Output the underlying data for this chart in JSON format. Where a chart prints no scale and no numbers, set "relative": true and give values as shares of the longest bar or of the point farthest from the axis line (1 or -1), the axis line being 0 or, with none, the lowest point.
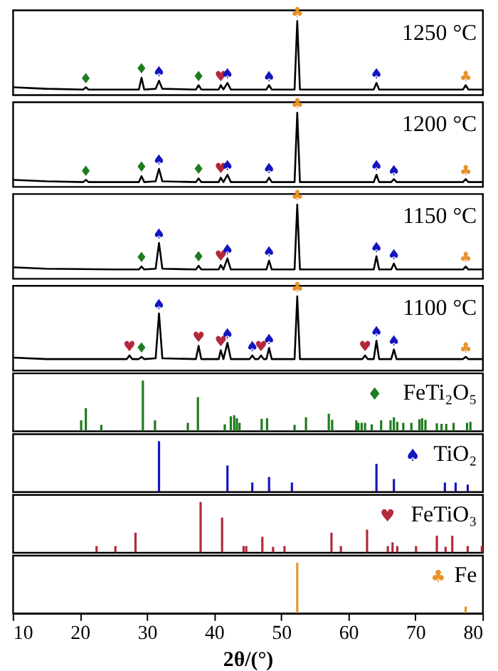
{
  "chart_data": [
    {
      "type": "line",
      "relative": true,
      "xlim": [
        10,
        80
      ],
      "tick_labels": false,
      "x": [
        10,
        15,
        20.5,
        20.9,
        21.3,
        28.8,
        29.2,
        29.6,
        31.3,
        31.8,
        32.3,
        37.3,
        37.7,
        38.1,
        40.7,
        41.0,
        41.4,
        42.0,
        42.5,
        47.8,
        48.2,
        48.6,
        52.0,
        52.4,
        52.8,
        63.8,
        64.2,
        64.6,
        77.1,
        77.5,
        77.9,
        80
      ],
      "series": [
        {
          "color": "#000000",
          "values": [
            0.1,
            0.08,
            0.07,
            0.1,
            0.07,
            0.07,
            0.23,
            0.07,
            0.08,
            0.19,
            0.08,
            0.07,
            0.13,
            0.07,
            0.07,
            0.13,
            0.07,
            0.16,
            0.07,
            0.07,
            0.13,
            0.07,
            0.07,
            1,
            0.07,
            0.07,
            0.16,
            0.07,
            0.07,
            0.13,
            0.07,
            0.07
          ]
        }
      ],
      "annotations": [
        "1250 °C",
        {
          "text": "♦",
          "x": 20.9,
          "y": 0.1
        },
        {
          "text": "♦",
          "x": 29.2,
          "y": 0.23
        },
        {
          "text": "♠",
          "x": 31.8,
          "y": 0.19
        },
        {
          "text": "♦",
          "x": 37.7,
          "y": 0.13
        },
        {
          "text": "♥",
          "x": 41.0,
          "y": 0.13
        },
        {
          "text": "♠",
          "x": 42.0,
          "y": 0.16
        },
        {
          "text": "♠",
          "x": 48.2,
          "y": 0.13
        },
        {
          "text": "♣",
          "x": 52.4,
          "y": 1
        },
        {
          "text": "♠",
          "x": 64.2,
          "y": 0.16
        },
        {
          "text": "♣",
          "x": 77.5,
          "y": 0.13
        }
      ]
    },
    {
      "type": "line",
      "relative": true,
      "xlim": [
        10,
        80
      ],
      "tick_labels": false,
      "x": [
        10,
        15,
        20.5,
        20.9,
        21.3,
        28.8,
        29.2,
        29.6,
        31.3,
        31.8,
        32.3,
        37.3,
        37.7,
        38.1,
        40.7,
        41.0,
        41.4,
        42.0,
        42.5,
        47.8,
        48.2,
        48.6,
        52.0,
        52.4,
        52.8,
        63.8,
        64.2,
        64.6,
        66.4,
        66.8,
        67.2,
        77.1,
        77.5,
        77.9,
        80
      ],
      "series": [
        {
          "color": "#000000",
          "values": [
            0.09,
            0.07,
            0.06,
            0.09,
            0.06,
            0.06,
            0.14,
            0.06,
            0.07,
            0.24,
            0.07,
            0.06,
            0.11,
            0.06,
            0.06,
            0.12,
            0.06,
            0.16,
            0.06,
            0.06,
            0.12,
            0.06,
            0.06,
            1,
            0.06,
            0.06,
            0.16,
            0.06,
            0.06,
            0.1,
            0.06,
            0.06,
            0.1,
            0.06,
            0.06
          ]
        }
      ],
      "annotations": [
        "1200 °C",
        {
          "text": "♦",
          "x": 20.9,
          "y": 0.09
        },
        {
          "text": "♦",
          "x": 29.2,
          "y": 0.14
        },
        {
          "text": "♠",
          "x": 31.8,
          "y": 0.24
        },
        {
          "text": "♦",
          "x": 37.7,
          "y": 0.11
        },
        {
          "text": "♥",
          "x": 41.0,
          "y": 0.12
        },
        {
          "text": "♠",
          "x": 42.0,
          "y": 0.16
        },
        {
          "text": "♠",
          "x": 48.2,
          "y": 0.12
        },
        {
          "text": "♣",
          "x": 52.4,
          "y": 1
        },
        {
          "text": "♠",
          "x": 64.2,
          "y": 0.16
        },
        {
          "text": "♠",
          "x": 66.8,
          "y": 0.1
        },
        {
          "text": "♣",
          "x": 77.5,
          "y": 0.1
        }
      ]
    },
    {
      "type": "line",
      "relative": true,
      "xlim": [
        10,
        80
      ],
      "tick_labels": false,
      "x": [
        10,
        15,
        25,
        28.8,
        29.2,
        29.6,
        31.3,
        31.8,
        32.3,
        37.3,
        37.7,
        38.1,
        40.7,
        41.0,
        41.4,
        42.0,
        42.5,
        47.8,
        48.2,
        48.6,
        52.0,
        52.4,
        52.8,
        63.8,
        64.2,
        64.6,
        66.4,
        66.8,
        67.2,
        77.1,
        77.5,
        77.9,
        80
      ],
      "series": [
        {
          "color": "#000000",
          "values": [
            0.15,
            0.13,
            0.12,
            0.12,
            0.16,
            0.12,
            0.13,
            0.48,
            0.13,
            0.12,
            0.17,
            0.12,
            0.12,
            0.18,
            0.12,
            0.27,
            0.12,
            0.12,
            0.24,
            0.12,
            0.12,
            1,
            0.12,
            0.12,
            0.3,
            0.12,
            0.12,
            0.2,
            0.12,
            0.12,
            0.16,
            0.12,
            0.12
          ]
        }
      ],
      "annotations": [
        "1150 °C",
        {
          "text": "♦",
          "x": 29.2,
          "y": 0.16
        },
        {
          "text": "♠",
          "x": 31.8,
          "y": 0.48
        },
        {
          "text": "♦",
          "x": 37.7,
          "y": 0.17
        },
        {
          "text": "♥",
          "x": 41.0,
          "y": 0.18
        },
        {
          "text": "♠",
          "x": 42.0,
          "y": 0.27
        },
        {
          "text": "♠",
          "x": 48.2,
          "y": 0.24
        },
        {
          "text": "♣",
          "x": 52.4,
          "y": 1
        },
        {
          "text": "♠",
          "x": 64.2,
          "y": 0.3
        },
        {
          "text": "♠",
          "x": 66.8,
          "y": 0.2
        },
        {
          "text": "♣",
          "x": 77.5,
          "y": 0.16
        }
      ]
    },
    {
      "type": "line",
      "relative": true,
      "xlim": [
        10,
        80
      ],
      "tick_labels": false,
      "x": [
        10,
        15,
        25,
        27.0,
        27.4,
        27.8,
        28.8,
        29.2,
        29.6,
        31.3,
        31.8,
        32.3,
        37.3,
        37.7,
        38.1,
        40.7,
        41.0,
        41.4,
        42.0,
        42.5,
        45.3,
        45.7,
        46.1,
        46.6,
        47.0,
        47.4,
        47.8,
        48.2,
        48.6,
        52.0,
        52.4,
        52.8,
        62.1,
        62.5,
        62.9,
        63.8,
        64.2,
        64.6,
        66.4,
        66.8,
        67.2,
        77.1,
        77.5,
        77.9,
        80
      ],
      "series": [
        {
          "color": "#000000",
          "values": [
            0.17,
            0.15,
            0.15,
            0.15,
            0.2,
            0.15,
            0.15,
            0.18,
            0.15,
            0.16,
            0.77,
            0.16,
            0.15,
            0.33,
            0.15,
            0.15,
            0.27,
            0.15,
            0.37,
            0.15,
            0.15,
            0.2,
            0.15,
            0.15,
            0.2,
            0.15,
            0.15,
            0.3,
            0.15,
            0.15,
            1,
            0.15,
            0.15,
            0.2,
            0.15,
            0.15,
            0.4,
            0.15,
            0.15,
            0.28,
            0.15,
            0.15,
            0.18,
            0.15,
            0.15
          ]
        }
      ],
      "annotations": [
        "1100 °C",
        {
          "text": "♥",
          "x": 27.4,
          "y": 0.2
        },
        {
          "text": "♦",
          "x": 29.2,
          "y": 0.18
        },
        {
          "text": "♠",
          "x": 31.8,
          "y": 0.77
        },
        {
          "text": "♥",
          "x": 37.7,
          "y": 0.33
        },
        {
          "text": "♥",
          "x": 41.0,
          "y": 0.27
        },
        {
          "text": "♠",
          "x": 42.0,
          "y": 0.37
        },
        {
          "text": "♠",
          "x": 45.7,
          "y": 0.2
        },
        {
          "text": "♥",
          "x": 47.0,
          "y": 0.2
        },
        {
          "text": "♠",
          "x": 48.2,
          "y": 0.3
        },
        {
          "text": "♣",
          "x": 52.4,
          "y": 1
        },
        {
          "text": "♥",
          "x": 62.5,
          "y": 0.2
        },
        {
          "text": "♠",
          "x": 64.2,
          "y": 0.4
        },
        {
          "text": "♠",
          "x": 66.8,
          "y": 0.28
        },
        {
          "text": "♣",
          "x": 77.5,
          "y": 0.18
        }
      ]
    },
    {
      "type": "bar",
      "relative": true,
      "xlim": [
        10,
        80
      ],
      "tick_labels": false,
      "series": [
        {
          "name": "FeTi₂O₅",
          "color": "#1e7b1e",
          "x": [
            20.2,
            20.9,
            23.2,
            29.4,
            31.2,
            36.1,
            37.6,
            41.6,
            42.5,
            43.0,
            43.4,
            43.8,
            47.1,
            47.9,
            52.0,
            53.7,
            57.1,
            57.6,
            61.2,
            61.5,
            62.0,
            62.5,
            63.5,
            64.9,
            66.3,
            66.8,
            67.3,
            68.2,
            69.4,
            70.6,
            71.0,
            71.5,
            73.2,
            73.9,
            74.6,
            75.7,
            77.7,
            78.2
          ],
          "values": [
            0.21,
            0.45,
            0.12,
            1,
            0.21,
            0.16,
            0.67,
            0.13,
            0.29,
            0.31,
            0.25,
            0.16,
            0.24,
            0.25,
            0.12,
            0.27,
            0.34,
            0.22,
            0.21,
            0.16,
            0.16,
            0.16,
            0.13,
            0.21,
            0.21,
            0.27,
            0.18,
            0.16,
            0.16,
            0.23,
            0.25,
            0.22,
            0.15,
            0.14,
            0.14,
            0.16,
            0.16,
            0.18
          ]
        }
      ],
      "annotations": [
        "♦"
      ]
    },
    {
      "type": "bar",
      "relative": true,
      "xlim": [
        10,
        80
      ],
      "tick_labels": false,
      "series": [
        {
          "name": "TiO₂",
          "color": "#1414c0",
          "x": [
            31.8,
            42.0,
            45.7,
            48.2,
            51.6,
            64.2,
            66.8,
            74.4,
            76.0,
            77.8
          ],
          "values": [
            1,
            0.52,
            0.18,
            0.29,
            0.18,
            0.55,
            0.25,
            0.18,
            0.18,
            0.14
          ]
        }
      ],
      "annotations": [
        "♠"
      ]
    },
    {
      "type": "bar",
      "relative": true,
      "xlim": [
        10,
        80
      ],
      "tick_labels": false,
      "series": [
        {
          "name": "FeTiO₃",
          "color": "#b3283a",
          "x": [
            22.5,
            25.3,
            28.3,
            38.0,
            41.2,
            44.4,
            44.8,
            47.2,
            48.8,
            50.5,
            57.5,
            58.9,
            62.8,
            65.9,
            66.6,
            67.3,
            70.1,
            73.2,
            74.5,
            75.5,
            77.8,
            79.9
          ],
          "values": [
            0.125,
            0.125,
            0.39,
            1,
            0.69,
            0.125,
            0.125,
            0.31,
            0.11,
            0.125,
            0.39,
            0.125,
            0.45,
            0.125,
            0.2,
            0.125,
            0.125,
            0.33,
            0.11,
            0.33,
            0.125,
            0.125
          ]
        }
      ],
      "annotations": [
        "♥"
      ]
    },
    {
      "type": "bar",
      "relative": true,
      "xlim": [
        10,
        80
      ],
      "xticks": [
        10,
        20,
        30,
        40,
        50,
        60,
        70,
        80
      ],
      "xlabel": "2θ/(°)",
      "series": [
        {
          "name": "Fe",
          "color": "#e8922a",
          "x": [
            52.4,
            77.5
          ],
          "values": [
            1,
            0.13
          ]
        }
      ],
      "annotations": [
        "♣"
      ]
    }
  ]
}
